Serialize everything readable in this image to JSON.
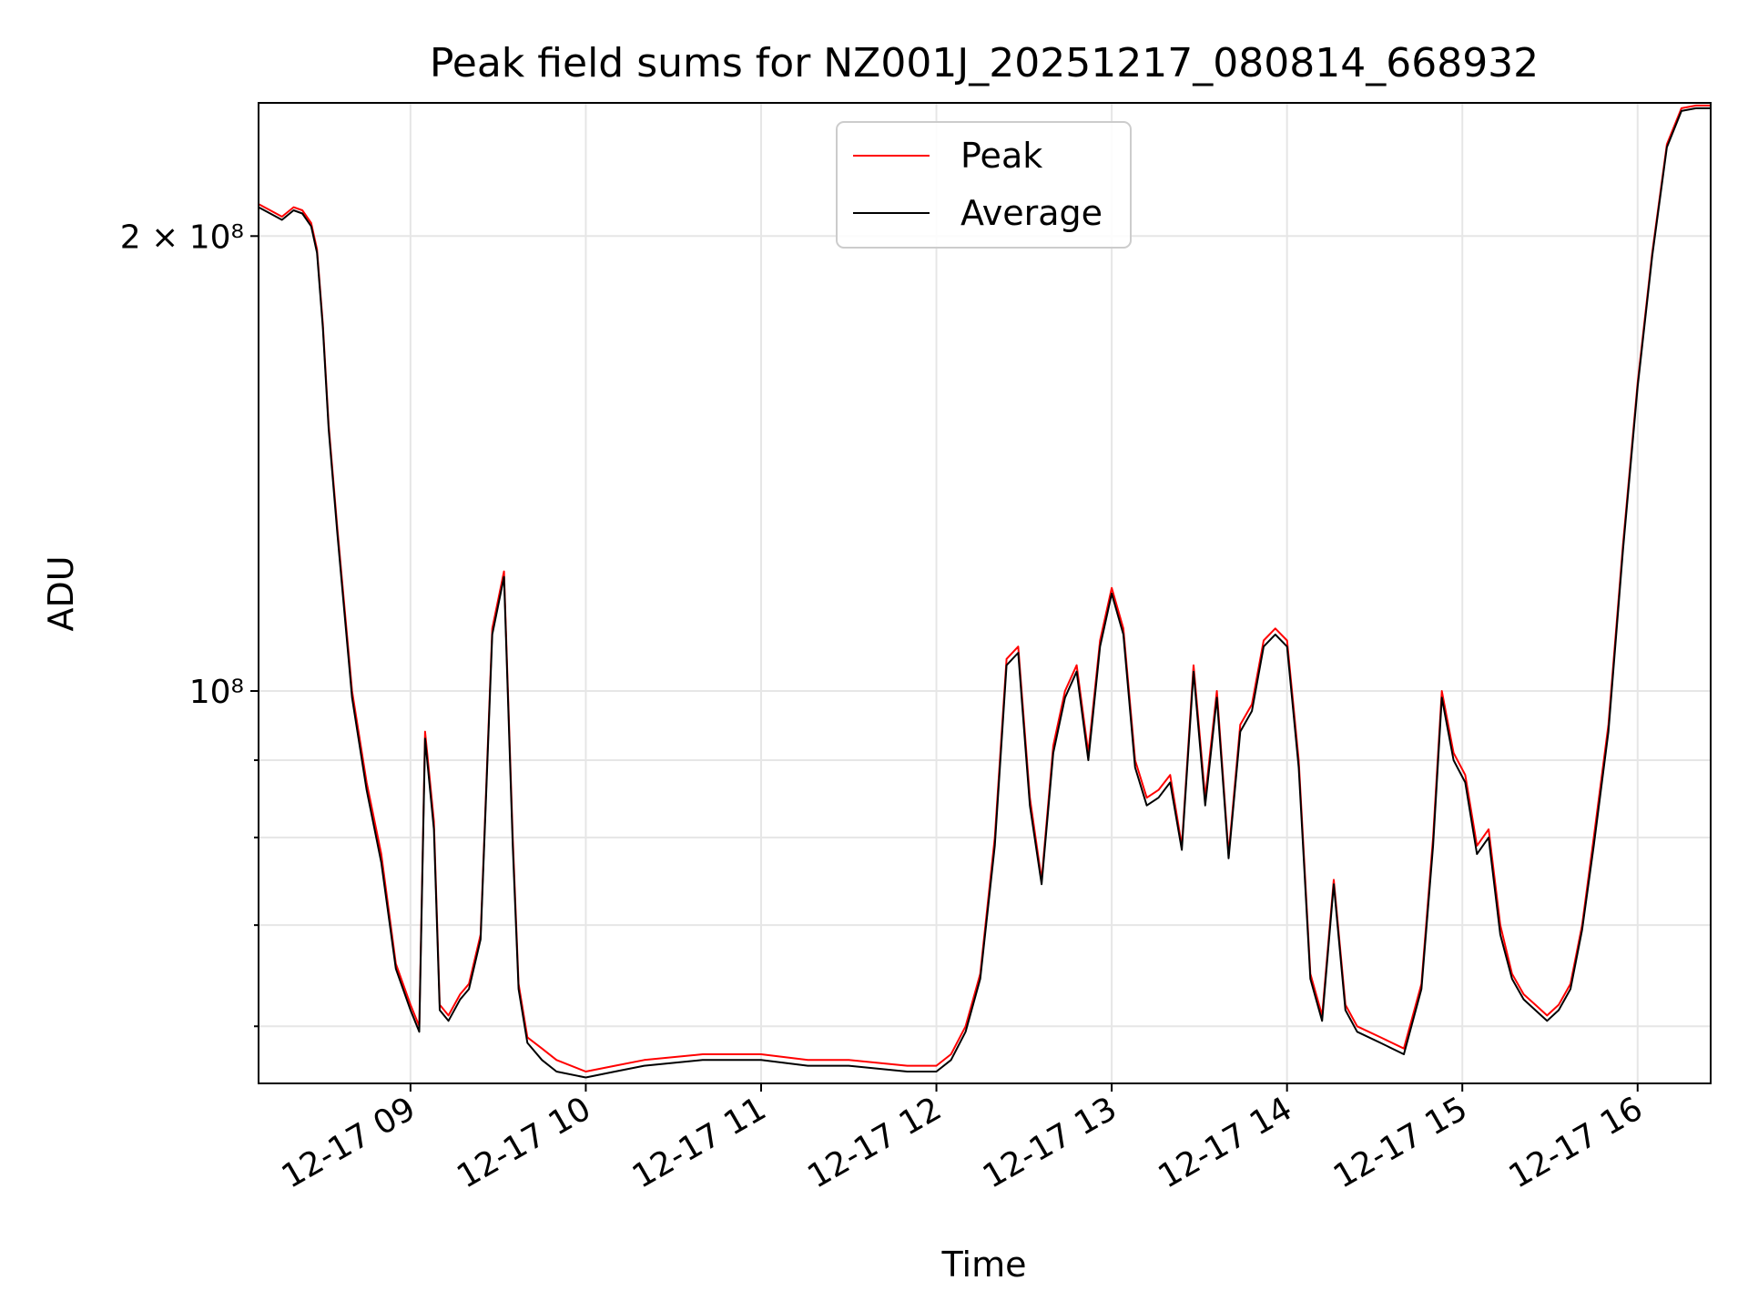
{
  "chart_data": {
    "type": "line",
    "title": "Peak field sums for NZ001J_20251217_080814_668932",
    "xlabel": "Time",
    "ylabel": "ADU",
    "yscale": "log",
    "xlim": [
      "12-17 08:08",
      "12-17 16:25"
    ],
    "ylim": [
      55000000,
      245000000
    ],
    "grid": true,
    "legend_position": "upper center",
    "x_ticks": [
      "12-17 09",
      "12-17 10",
      "12-17 11",
      "12-17 12",
      "12-17 13",
      "12-17 14",
      "12-17 15",
      "12-17 16"
    ],
    "y_ticks": [
      {
        "value": 200000000,
        "label": "2 × 10⁸",
        "major": true
      },
      {
        "value": 100000000,
        "label": "10⁸",
        "major": true
      },
      {
        "value": 90000000,
        "label": "",
        "major": false
      },
      {
        "value": 80000000,
        "label": "",
        "major": false
      },
      {
        "value": 70000000,
        "label": "",
        "major": false
      },
      {
        "value": 60000000,
        "label": "",
        "major": false
      }
    ],
    "series": [
      {
        "name": "Peak",
        "color": "#ff0000",
        "x": [
          "12-17 08:08",
          "12-17 08:12",
          "12-17 08:16",
          "12-17 08:20",
          "12-17 08:23",
          "12-17 08:26",
          "12-17 08:28",
          "12-17 08:30",
          "12-17 08:32",
          "12-17 08:35",
          "12-17 08:40",
          "12-17 08:45",
          "12-17 08:50",
          "12-17 08:55",
          "12-17 09:00",
          "12-17 09:03",
          "12-17 09:05",
          "12-17 09:08",
          "12-17 09:10",
          "12-17 09:13",
          "12-17 09:17",
          "12-17 09:20",
          "12-17 09:24",
          "12-17 09:28",
          "12-17 09:32",
          "12-17 09:35",
          "12-17 09:37",
          "12-17 09:40",
          "12-17 09:45",
          "12-17 09:50",
          "12-17 10:00",
          "12-17 10:10",
          "12-17 10:20",
          "12-17 10:40",
          "12-17 11:00",
          "12-17 11:16",
          "12-17 11:30",
          "12-17 11:50",
          "12-17 12:00",
          "12-17 12:05",
          "12-17 12:10",
          "12-17 12:15",
          "12-17 12:20",
          "12-17 12:24",
          "12-17 12:28",
          "12-17 12:32",
          "12-17 12:36",
          "12-17 12:40",
          "12-17 12:44",
          "12-17 12:48",
          "12-17 12:52",
          "12-17 12:56",
          "12-17 13:00",
          "12-17 13:04",
          "12-17 13:08",
          "12-17 13:12",
          "12-17 13:16",
          "12-17 13:20",
          "12-17 13:24",
          "12-17 13:28",
          "12-17 13:32",
          "12-17 13:36",
          "12-17 13:40",
          "12-17 13:44",
          "12-17 13:48",
          "12-17 13:52",
          "12-17 13:56",
          "12-17 14:00",
          "12-17 14:04",
          "12-17 14:08",
          "12-17 14:12",
          "12-17 14:16",
          "12-17 14:20",
          "12-17 14:24",
          "12-17 14:32",
          "12-17 14:40",
          "12-17 14:46",
          "12-17 14:50",
          "12-17 14:53",
          "12-17 14:57",
          "12-17 15:01",
          "12-17 15:05",
          "12-17 15:09",
          "12-17 15:13",
          "12-17 15:17",
          "12-17 15:21",
          "12-17 15:25",
          "12-17 15:29",
          "12-17 15:33",
          "12-17 15:37",
          "12-17 15:41",
          "12-17 15:45",
          "12-17 15:50",
          "12-17 15:55",
          "12-17 16:00",
          "12-17 16:05",
          "12-17 16:10",
          "12-17 16:15",
          "12-17 16:20",
          "12-17 16:25"
        ],
        "values": [
          210000000,
          208000000,
          206000000,
          209000000,
          208000000,
          204000000,
          196000000,
          175000000,
          150000000,
          128000000,
          100000000,
          87000000,
          78000000,
          66000000,
          62000000,
          60000000,
          94000000,
          82000000,
          62000000,
          61000000,
          63000000,
          64000000,
          69000000,
          110000000,
          120000000,
          80000000,
          64000000,
          59000000,
          58000000,
          57000000,
          56000000,
          56500000,
          57000000,
          57500000,
          57500000,
          57000000,
          57000000,
          56500000,
          56500000,
          57500000,
          60000000,
          65000000,
          80000000,
          105000000,
          107000000,
          85000000,
          75000000,
          92000000,
          100000000,
          104000000,
          91000000,
          108000000,
          117000000,
          110000000,
          90000000,
          85000000,
          86000000,
          88000000,
          79000000,
          104000000,
          85000000,
          100000000,
          78000000,
          95000000,
          98000000,
          108000000,
          110000000,
          108000000,
          90000000,
          65000000,
          61000000,
          75000000,
          62000000,
          60000000,
          59000000,
          58000000,
          64000000,
          80000000,
          100000000,
          91000000,
          88000000,
          79000000,
          81000000,
          70000000,
          65000000,
          63000000,
          62000000,
          61000000,
          62000000,
          64000000,
          70000000,
          80000000,
          95000000,
          125000000,
          160000000,
          195000000,
          230000000,
          243000000,
          244000000,
          244000000
        ]
      },
      {
        "name": "Average",
        "color": "#000000",
        "x": [
          "12-17 08:08",
          "12-17 08:12",
          "12-17 08:16",
          "12-17 08:20",
          "12-17 08:23",
          "12-17 08:26",
          "12-17 08:28",
          "12-17 08:30",
          "12-17 08:32",
          "12-17 08:35",
          "12-17 08:40",
          "12-17 08:45",
          "12-17 08:50",
          "12-17 08:55",
          "12-17 09:00",
          "12-17 09:03",
          "12-17 09:05",
          "12-17 09:08",
          "12-17 09:10",
          "12-17 09:13",
          "12-17 09:17",
          "12-17 09:20",
          "12-17 09:24",
          "12-17 09:28",
          "12-17 09:32",
          "12-17 09:35",
          "12-17 09:37",
          "12-17 09:40",
          "12-17 09:45",
          "12-17 09:50",
          "12-17 10:00",
          "12-17 10:10",
          "12-17 10:20",
          "12-17 10:40",
          "12-17 11:00",
          "12-17 11:16",
          "12-17 11:30",
          "12-17 11:50",
          "12-17 12:00",
          "12-17 12:05",
          "12-17 12:10",
          "12-17 12:15",
          "12-17 12:20",
          "12-17 12:24",
          "12-17 12:28",
          "12-17 12:32",
          "12-17 12:36",
          "12-17 12:40",
          "12-17 12:44",
          "12-17 12:48",
          "12-17 12:52",
          "12-17 12:56",
          "12-17 13:00",
          "12-17 13:04",
          "12-17 13:08",
          "12-17 13:12",
          "12-17 13:16",
          "12-17 13:20",
          "12-17 13:24",
          "12-17 13:28",
          "12-17 13:32",
          "12-17 13:36",
          "12-17 13:40",
          "12-17 13:44",
          "12-17 13:48",
          "12-17 13:52",
          "12-17 13:56",
          "12-17 14:00",
          "12-17 14:04",
          "12-17 14:08",
          "12-17 14:12",
          "12-17 14:16",
          "12-17 14:20",
          "12-17 14:24",
          "12-17 14:32",
          "12-17 14:40",
          "12-17 14:46",
          "12-17 14:50",
          "12-17 14:53",
          "12-17 14:57",
          "12-17 15:01",
          "12-17 15:05",
          "12-17 15:09",
          "12-17 15:13",
          "12-17 15:17",
          "12-17 15:21",
          "12-17 15:25",
          "12-17 15:29",
          "12-17 15:33",
          "12-17 15:37",
          "12-17 15:41",
          "12-17 15:45",
          "12-17 15:50",
          "12-17 15:55",
          "12-17 16:00",
          "12-17 16:05",
          "12-17 16:10",
          "12-17 16:15",
          "12-17 16:20",
          "12-17 16:25"
        ],
        "values": [
          209000000,
          207000000,
          205000000,
          208000000,
          207000000,
          203000000,
          195000000,
          174000000,
          149000000,
          127000000,
          99000000,
          86000000,
          77000000,
          65500000,
          61500000,
          59500000,
          93000000,
          81000000,
          61500000,
          60500000,
          62500000,
          63500000,
          68500000,
          109000000,
          119000000,
          79000000,
          63500000,
          58500000,
          57000000,
          56000000,
          55500000,
          56000000,
          56500000,
          57000000,
          57000000,
          56500000,
          56500000,
          56000000,
          56000000,
          57000000,
          59500000,
          64500000,
          79000000,
          104000000,
          106000000,
          84000000,
          74500000,
          91000000,
          99000000,
          103000000,
          90000000,
          107000000,
          116000000,
          109000000,
          89000000,
          84000000,
          85000000,
          87000000,
          78500000,
          103000000,
          84000000,
          99000000,
          77500000,
          94000000,
          97000000,
          107000000,
          109000000,
          107000000,
          89000000,
          64500000,
          60500000,
          74500000,
          61500000,
          59500000,
          58500000,
          57500000,
          63500000,
          79000000,
          99000000,
          90000000,
          87000000,
          78000000,
          80000000,
          69000000,
          64500000,
          62500000,
          61500000,
          60500000,
          61500000,
          63500000,
          69500000,
          79000000,
          94000000,
          124000000,
          159000000,
          194000000,
          229000000,
          242000000,
          243000000,
          243000000
        ]
      }
    ]
  }
}
